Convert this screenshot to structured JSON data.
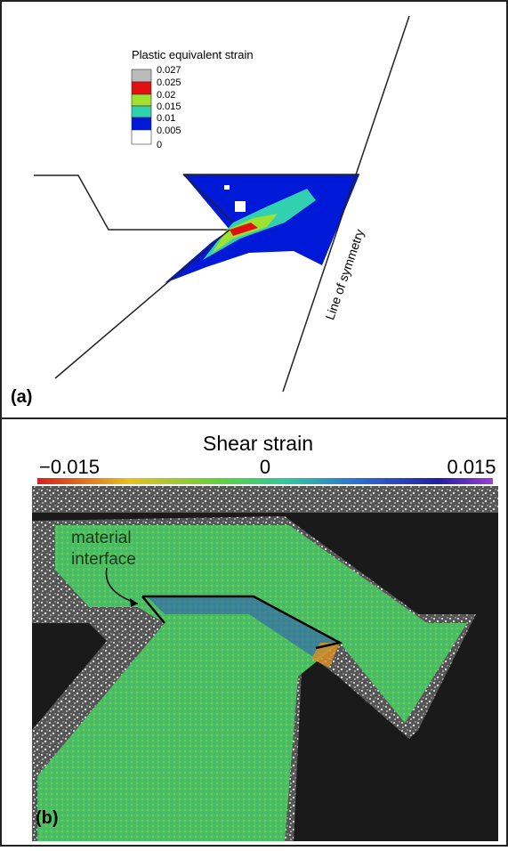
{
  "panel_a": {
    "label": "(a)",
    "legend": {
      "title": "Plastic equivalent strain",
      "labels": [
        "0.027",
        "0.025",
        "0.02",
        "0.015",
        "0.01",
        "0.005",
        "0"
      ]
    },
    "annotation": "Line of symmetry"
  },
  "panel_b": {
    "label": "(b)",
    "colorbar": {
      "title": "Shear strain",
      "ticks": [
        "−0.015",
        "0",
        "0.015"
      ]
    },
    "annotation": [
      "material",
      "interface"
    ]
  }
}
